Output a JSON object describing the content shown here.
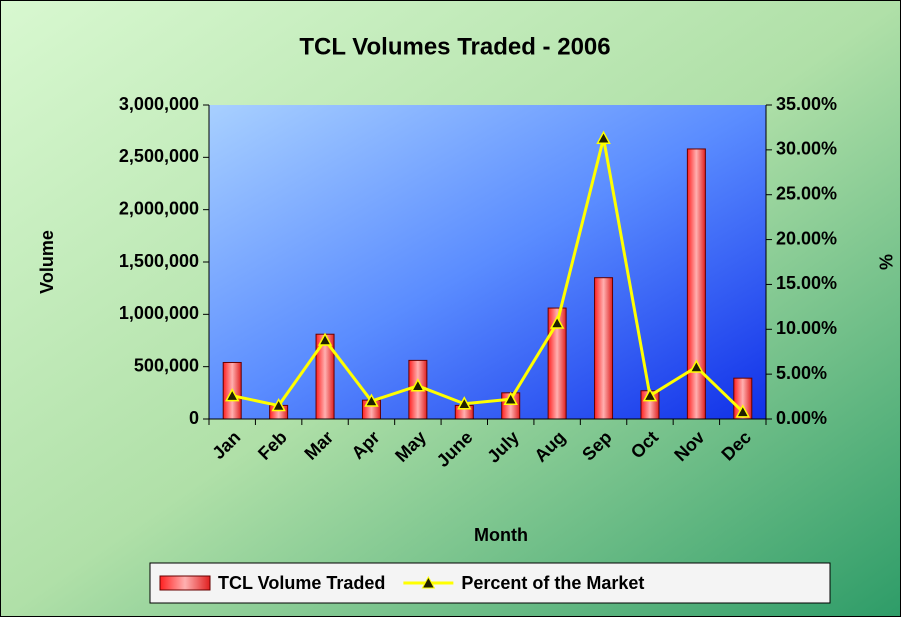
{
  "chart_data": {
    "type": "bar_line",
    "title": "TCL Volumes Traded - 2006",
    "x_label": "Month",
    "y_label": "Volume",
    "y2_label": "%",
    "categories": [
      "Jan",
      "Feb",
      "Mar",
      "Apr",
      "May",
      "June",
      "July",
      "Aug",
      "Sep",
      "Oct",
      "Nov",
      "Dec"
    ],
    "series": [
      {
        "name": "TCL Volume Traded",
        "type": "bar",
        "color": "#ff4040",
        "values": [
          540000,
          130000,
          810000,
          180000,
          560000,
          130000,
          250000,
          1060000,
          1350000,
          270000,
          2580000,
          390000
        ]
      },
      {
        "name": "Percent of the Market",
        "type": "line",
        "axis": "y2",
        "color": "#ffff00",
        "values": [
          2.6,
          1.5,
          8.8,
          2.0,
          3.7,
          1.7,
          2.2,
          10.7,
          31.3,
          2.6,
          5.8,
          0.8
        ]
      }
    ],
    "ylim": [
      0,
      3000000
    ],
    "yticks": [
      0,
      {
        "value": 500000,
        "label": "500,000"
      },
      {
        "value": 1000000,
        "label": "1,000,000"
      },
      {
        "value": 1500000,
        "label": "1,500,000"
      },
      {
        "value": 2000000,
        "label": "2,000,000"
      },
      {
        "value": 2500000,
        "label": "2,500,000"
      },
      {
        "value": 3000000,
        "label": "3,000,000"
      }
    ],
    "y2lim": [
      0,
      35
    ],
    "y2ticks": [
      {
        "value": 0,
        "label": "0.00%"
      },
      {
        "value": 5,
        "label": "5.00%"
      },
      {
        "value": 10,
        "label": "10.00%"
      },
      {
        "value": 15,
        "label": "15.00%"
      },
      {
        "value": 20,
        "label": "20.00%"
      },
      {
        "value": 25,
        "label": "25.00%"
      },
      {
        "value": 30,
        "label": "30.00%"
      },
      {
        "value": 35,
        "label": "35.00%"
      }
    ],
    "legend": "bottom"
  }
}
